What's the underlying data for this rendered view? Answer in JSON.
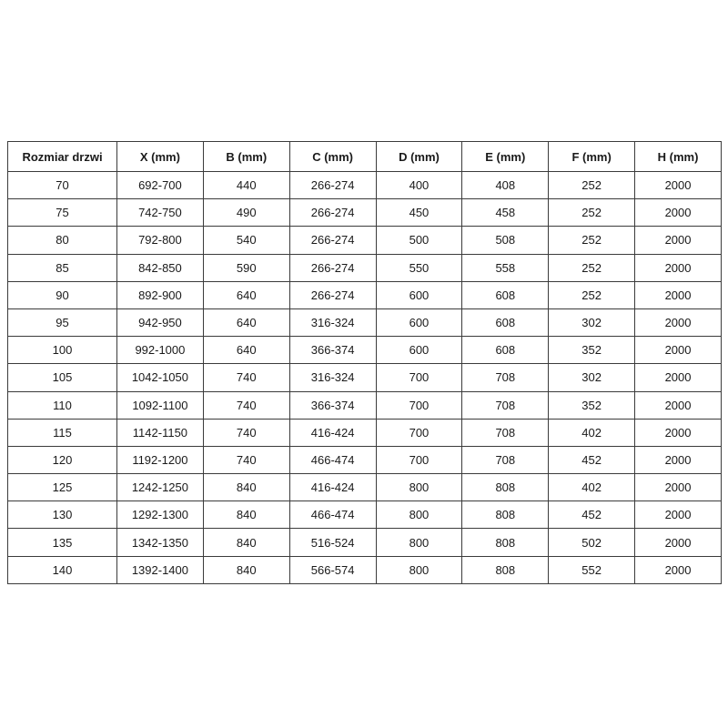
{
  "colors": {
    "background": "#ffffff",
    "border": "#3b3b3b",
    "text": "#1a1a1a"
  },
  "table": {
    "columns": [
      "Rozmiar drzwi",
      "X (mm)",
      "B (mm)",
      "C (mm)",
      "D (mm)",
      "E (mm)",
      "F (mm)",
      "H (mm)"
    ],
    "rows": [
      [
        "70",
        "692-700",
        "440",
        "266-274",
        "400",
        "408",
        "252",
        "2000"
      ],
      [
        "75",
        "742-750",
        "490",
        "266-274",
        "450",
        "458",
        "252",
        "2000"
      ],
      [
        "80",
        "792-800",
        "540",
        "266-274",
        "500",
        "508",
        "252",
        "2000"
      ],
      [
        "85",
        "842-850",
        "590",
        "266-274",
        "550",
        "558",
        "252",
        "2000"
      ],
      [
        "90",
        "892-900",
        "640",
        "266-274",
        "600",
        "608",
        "252",
        "2000"
      ],
      [
        "95",
        "942-950",
        "640",
        "316-324",
        "600",
        "608",
        "302",
        "2000"
      ],
      [
        "100",
        "992-1000",
        "640",
        "366-374",
        "600",
        "608",
        "352",
        "2000"
      ],
      [
        "105",
        "1042-1050",
        "740",
        "316-324",
        "700",
        "708",
        "302",
        "2000"
      ],
      [
        "110",
        "1092-1100",
        "740",
        "366-374",
        "700",
        "708",
        "352",
        "2000"
      ],
      [
        "115",
        "1142-1150",
        "740",
        "416-424",
        "700",
        "708",
        "402",
        "2000"
      ],
      [
        "120",
        "1192-1200",
        "740",
        "466-474",
        "700",
        "708",
        "452",
        "2000"
      ],
      [
        "125",
        "1242-1250",
        "840",
        "416-424",
        "800",
        "808",
        "402",
        "2000"
      ],
      [
        "130",
        "1292-1300",
        "840",
        "466-474",
        "800",
        "808",
        "452",
        "2000"
      ],
      [
        "135",
        "1342-1350",
        "840",
        "516-524",
        "800",
        "808",
        "502",
        "2000"
      ],
      [
        "140",
        "1392-1400",
        "840",
        "566-574",
        "800",
        "808",
        "552",
        "2000"
      ]
    ]
  }
}
